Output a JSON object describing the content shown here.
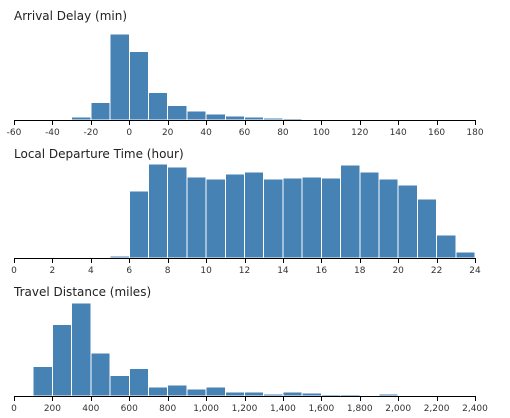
{
  "chart_data": [
    {
      "type": "bar",
      "title": "Arrival Delay (min)",
      "xlim": [
        -60,
        180
      ],
      "ticks": [
        -60,
        -40,
        -20,
        0,
        20,
        40,
        60,
        80,
        100,
        120,
        140,
        160,
        180
      ],
      "bin_width": 10,
      "bins": [
        {
          "x0": -40,
          "x1": -30,
          "value": 1
        },
        {
          "x0": -30,
          "x1": -20,
          "value": 3
        },
        {
          "x0": -20,
          "x1": -10,
          "value": 17
        },
        {
          "x0": -10,
          "x1": 0,
          "value": 84
        },
        {
          "x0": 0,
          "x1": 10,
          "value": 67
        },
        {
          "x0": 10,
          "x1": 20,
          "value": 27
        },
        {
          "x0": 20,
          "x1": 30,
          "value": 14
        },
        {
          "x0": 30,
          "x1": 40,
          "value": 9
        },
        {
          "x0": 40,
          "x1": 50,
          "value": 6
        },
        {
          "x0": 50,
          "x1": 60,
          "value": 4
        },
        {
          "x0": 60,
          "x1": 70,
          "value": 3
        },
        {
          "x0": 70,
          "x1": 80,
          "value": 2
        },
        {
          "x0": 80,
          "x1": 90,
          "value": 1.5
        },
        {
          "x0": 90,
          "x1": 100,
          "value": 1.2
        },
        {
          "x0": 100,
          "x1": 110,
          "value": 1
        },
        {
          "x0": 110,
          "x1": 120,
          "value": 0.8
        },
        {
          "x0": 120,
          "x1": 130,
          "value": 0.6
        },
        {
          "x0": 130,
          "x1": 140,
          "value": 0.5
        },
        {
          "x0": 140,
          "x1": 150,
          "value": 0.5
        },
        {
          "x0": 150,
          "x1": 160,
          "value": 0.4
        },
        {
          "x0": 160,
          "x1": 170,
          "value": 0.4
        },
        {
          "x0": 170,
          "x1": 180,
          "value": 0.3
        }
      ]
    },
    {
      "type": "bar",
      "title": "Local Departure Time (hour)",
      "xlim": [
        0,
        24
      ],
      "ticks": [
        0,
        2,
        4,
        6,
        8,
        10,
        12,
        14,
        16,
        18,
        20,
        22,
        24
      ],
      "bin_width": 1,
      "bins": [
        {
          "x0": 0,
          "x1": 1,
          "value": 0.5
        },
        {
          "x0": 1,
          "x1": 2,
          "value": 0.5
        },
        {
          "x0": 2,
          "x1": 3,
          "value": 0.5
        },
        {
          "x0": 3,
          "x1": 4,
          "value": 0.5
        },
        {
          "x0": 4,
          "x1": 5,
          "value": 0.5
        },
        {
          "x0": 5,
          "x1": 6,
          "value": 2
        },
        {
          "x0": 6,
          "x1": 7,
          "value": 67
        },
        {
          "x0": 7,
          "x1": 8,
          "value": 94
        },
        {
          "x0": 8,
          "x1": 9,
          "value": 91
        },
        {
          "x0": 9,
          "x1": 10,
          "value": 81
        },
        {
          "x0": 10,
          "x1": 11,
          "value": 79
        },
        {
          "x0": 11,
          "x1": 12,
          "value": 84
        },
        {
          "x0": 12,
          "x1": 13,
          "value": 86
        },
        {
          "x0": 13,
          "x1": 14,
          "value": 79
        },
        {
          "x0": 14,
          "x1": 15,
          "value": 80
        },
        {
          "x0": 15,
          "x1": 16,
          "value": 81
        },
        {
          "x0": 16,
          "x1": 17,
          "value": 80
        },
        {
          "x0": 17,
          "x1": 18,
          "value": 93
        },
        {
          "x0": 18,
          "x1": 19,
          "value": 86
        },
        {
          "x0": 19,
          "x1": 20,
          "value": 79
        },
        {
          "x0": 20,
          "x1": 21,
          "value": 73
        },
        {
          "x0": 21,
          "x1": 22,
          "value": 59
        },
        {
          "x0": 22,
          "x1": 23,
          "value": 23
        },
        {
          "x0": 23,
          "x1": 24,
          "value": 6
        }
      ]
    },
    {
      "type": "bar",
      "title": "Travel Distance (miles)",
      "xlim": [
        0,
        2400
      ],
      "ticks": [
        0,
        200,
        400,
        600,
        800,
        1000,
        1200,
        1400,
        1600,
        1800,
        2000,
        2200,
        2400
      ],
      "tick_labels": [
        "0",
        "200",
        "400",
        "600",
        "800",
        "1,000",
        "1,200",
        "1,400",
        "1,600",
        "1,800",
        "2,000",
        "2,200",
        "2,400"
      ],
      "bin_width": 100,
      "bins": [
        {
          "x0": 100,
          "x1": 200,
          "value": 30
        },
        {
          "x0": 200,
          "x1": 300,
          "value": 73
        },
        {
          "x0": 300,
          "x1": 400,
          "value": 95
        },
        {
          "x0": 400,
          "x1": 500,
          "value": 44
        },
        {
          "x0": 500,
          "x1": 600,
          "value": 21
        },
        {
          "x0": 600,
          "x1": 700,
          "value": 28
        },
        {
          "x0": 700,
          "x1": 800,
          "value": 9
        },
        {
          "x0": 800,
          "x1": 900,
          "value": 11
        },
        {
          "x0": 900,
          "x1": 1000,
          "value": 7
        },
        {
          "x0": 1000,
          "x1": 1100,
          "value": 9
        },
        {
          "x0": 1100,
          "x1": 1200,
          "value": 4
        },
        {
          "x0": 1200,
          "x1": 1300,
          "value": 4
        },
        {
          "x0": 1300,
          "x1": 1400,
          "value": 2
        },
        {
          "x0": 1400,
          "x1": 1500,
          "value": 4
        },
        {
          "x0": 1500,
          "x1": 1600,
          "value": 3
        },
        {
          "x0": 1600,
          "x1": 1700,
          "value": 1.5
        },
        {
          "x0": 1700,
          "x1": 1800,
          "value": 1.5
        },
        {
          "x0": 1800,
          "x1": 1900,
          "value": 1
        },
        {
          "x0": 1900,
          "x1": 2000,
          "value": 2
        },
        {
          "x0": 2000,
          "x1": 2100,
          "value": 0.5
        },
        {
          "x0": 2100,
          "x1": 2200,
          "value": 0.5
        },
        {
          "x0": 2200,
          "x1": 2300,
          "value": 0.5
        },
        {
          "x0": 2300,
          "x1": 2400,
          "value": 1
        }
      ]
    }
  ],
  "colors": {
    "bar_fill": "#4682b4",
    "bar_stroke": "#ffffff",
    "axis": "#000000"
  }
}
